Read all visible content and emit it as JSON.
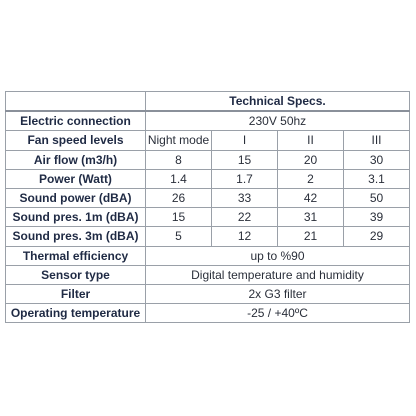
{
  "table": {
    "title": "Technical Specs.",
    "rows": {
      "electric": {
        "label": "Electric connection",
        "value": "230V 50hz"
      },
      "fan_speed": {
        "label": "Fan speed levels",
        "values": [
          "Night mode",
          "I",
          "II",
          "III"
        ]
      },
      "air_flow": {
        "label": "Air flow (m3/h)",
        "values": [
          "8",
          "15",
          "20",
          "30"
        ]
      },
      "power": {
        "label": "Power (Watt)",
        "values": [
          "1.4",
          "1.7",
          "2",
          "3.1"
        ]
      },
      "sound_power": {
        "label": "Sound power (dBA)",
        "values": [
          "26",
          "33",
          "42",
          "50"
        ]
      },
      "sound_1m": {
        "label": "Sound pres. 1m (dBA)",
        "values": [
          "15",
          "22",
          "31",
          "39"
        ]
      },
      "sound_3m": {
        "label": "Sound pres. 3m (dBA)",
        "values": [
          "5",
          "12",
          "21",
          "29"
        ]
      },
      "thermal": {
        "label": "Thermal efficiency",
        "value": "up to %90"
      },
      "sensor": {
        "label": "Sensor type",
        "value": "Digital temperature and humidity"
      },
      "filter": {
        "label": "Filter",
        "value": "2x G3 filter"
      },
      "operating_temp": {
        "label": "Operating temperature",
        "value": "-25 / +40ºC"
      }
    }
  }
}
